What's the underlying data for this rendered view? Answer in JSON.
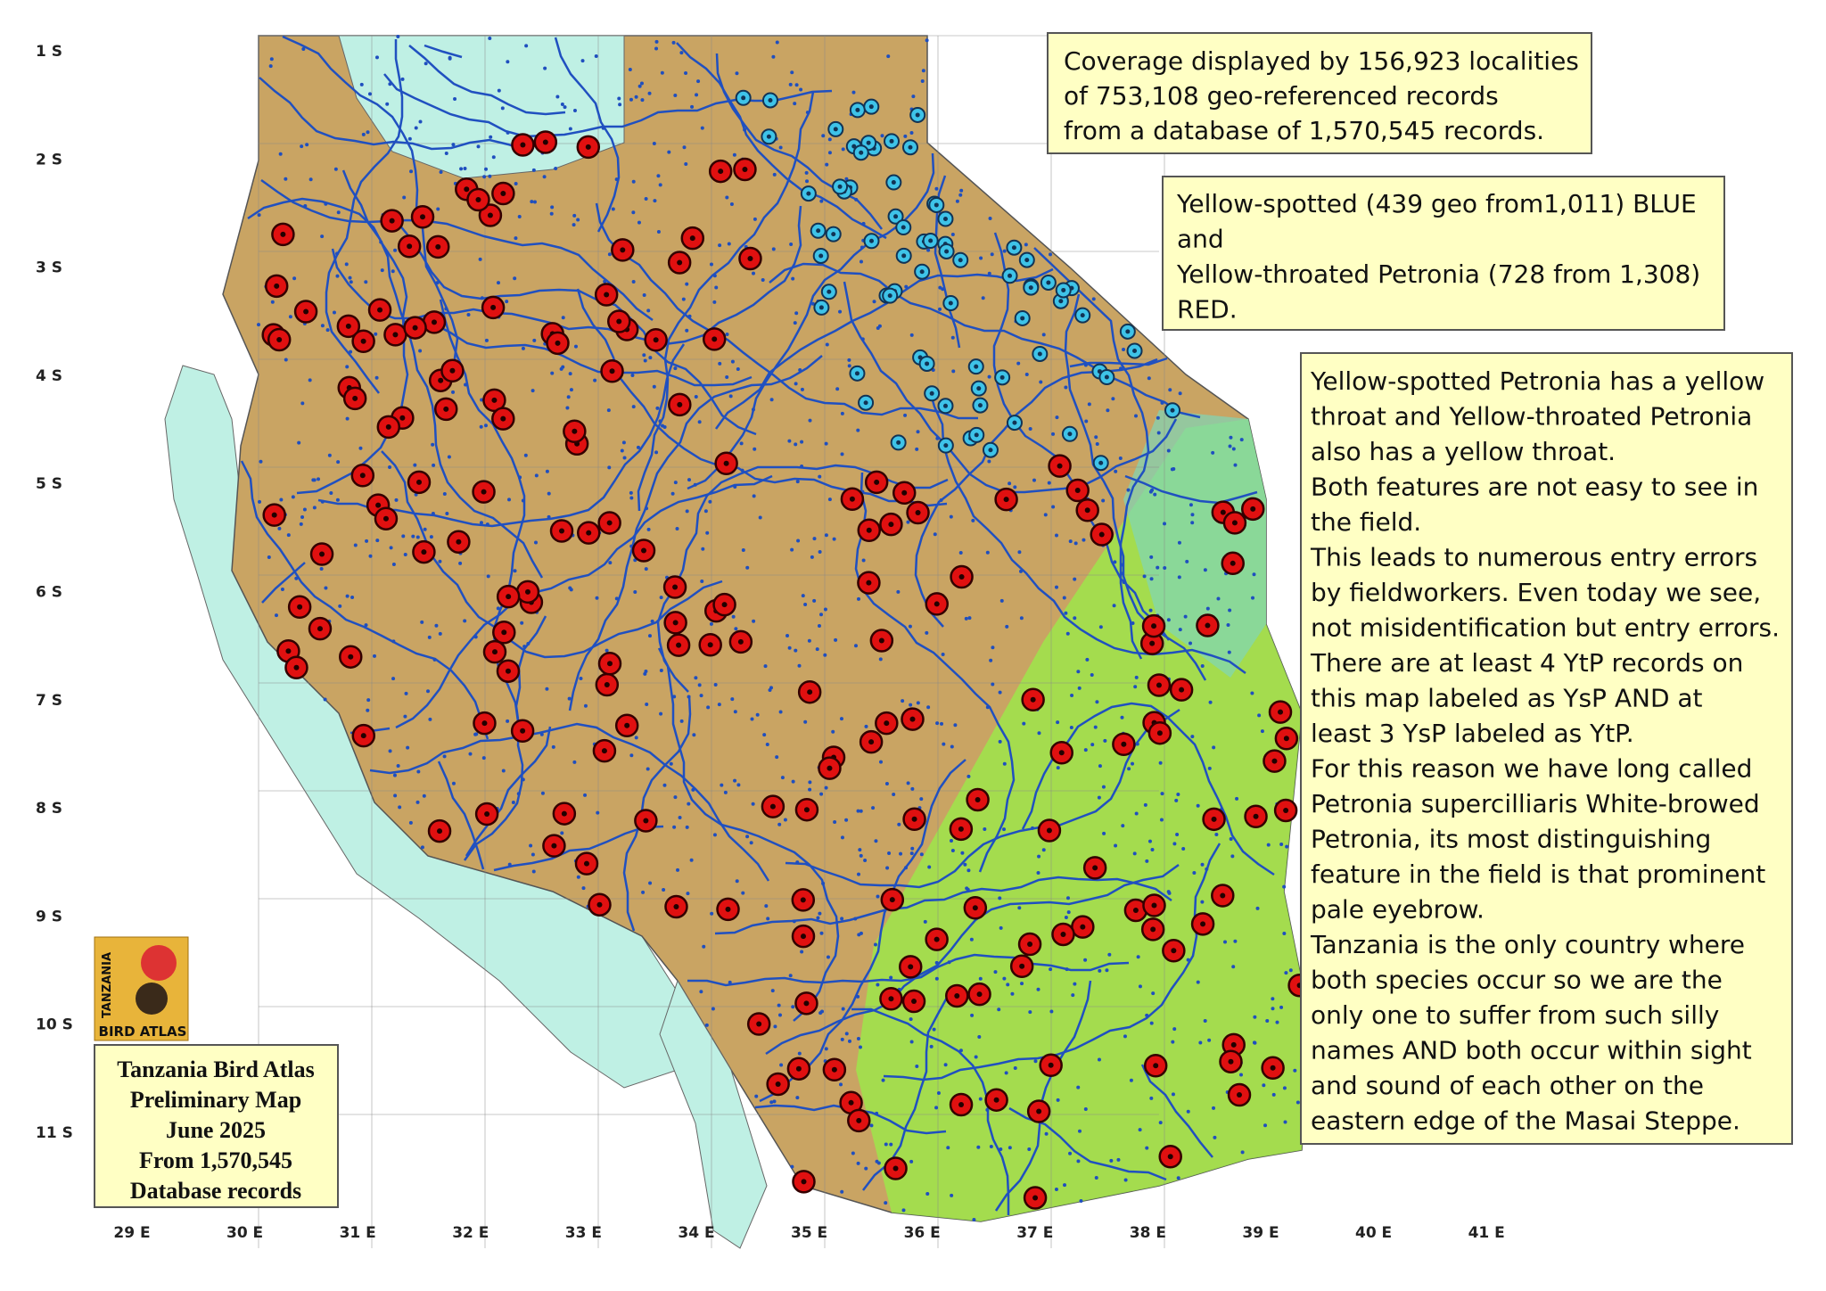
{
  "lat_labels": [
    "1 S",
    "2 S",
    "3 S",
    "4 S",
    "5 S",
    "6 S",
    "7 S",
    "8 S",
    "9 S",
    "10 S",
    "11 S"
  ],
  "lon_labels": [
    "29 E",
    "30 E",
    "31 E",
    "32 E",
    "33 E",
    "34 E",
    "35 E",
    "36 E",
    "37 E",
    "38 E",
    "39 E",
    "40 E",
    "41 E"
  ],
  "coverage_note": {
    "lines": [
      "Coverage displayed by 156,923 localities",
      "of 753,108 geo-referenced records",
      "from a database of 1,570,545 records."
    ]
  },
  "species_note": {
    "lines": [
      "Yellow-spotted (439 geo from1,011) BLUE",
      "and",
      "Yellow-throated Petronia (728 from 1,308)",
      "RED."
    ]
  },
  "discussion": {
    "lines": [
      "Yellow-spotted Petronia has a yellow",
      "throat and Yellow-throated Petronia",
      "also has a yellow throat.",
      "Both features are not easy to see in",
      "the field.",
      "This leads to numerous entry errors",
      "by fieldworkers. Even today we see,",
      "not misidentification but entry errors.",
      "There are at least 4 YtP records on",
      "this map labeled as YsP AND at",
      "least 3 YsP labeled as YtP.",
      "For this reason we have long called",
      "Petronia supercilliaris White-browed",
      "Petronia, its most distinguishing",
      "feature in the field is that prominent",
      "pale eyebrow.",
      "Tanzania is the only country where",
      "both species occur so we are the",
      "only one to suffer from such silly",
      "names AND both occur within sight",
      "and sound of each other on the",
      "eastern edge of the Masai Steppe."
    ]
  },
  "legend": {
    "lines": [
      "Tanzania Bird Atlas",
      "Preliminary Map",
      "June 2025",
      "From 1,570,545",
      "Database records"
    ]
  },
  "logo": {
    "vertical": "TANZANIA",
    "bottom": "BIRD ATLAS"
  }
}
